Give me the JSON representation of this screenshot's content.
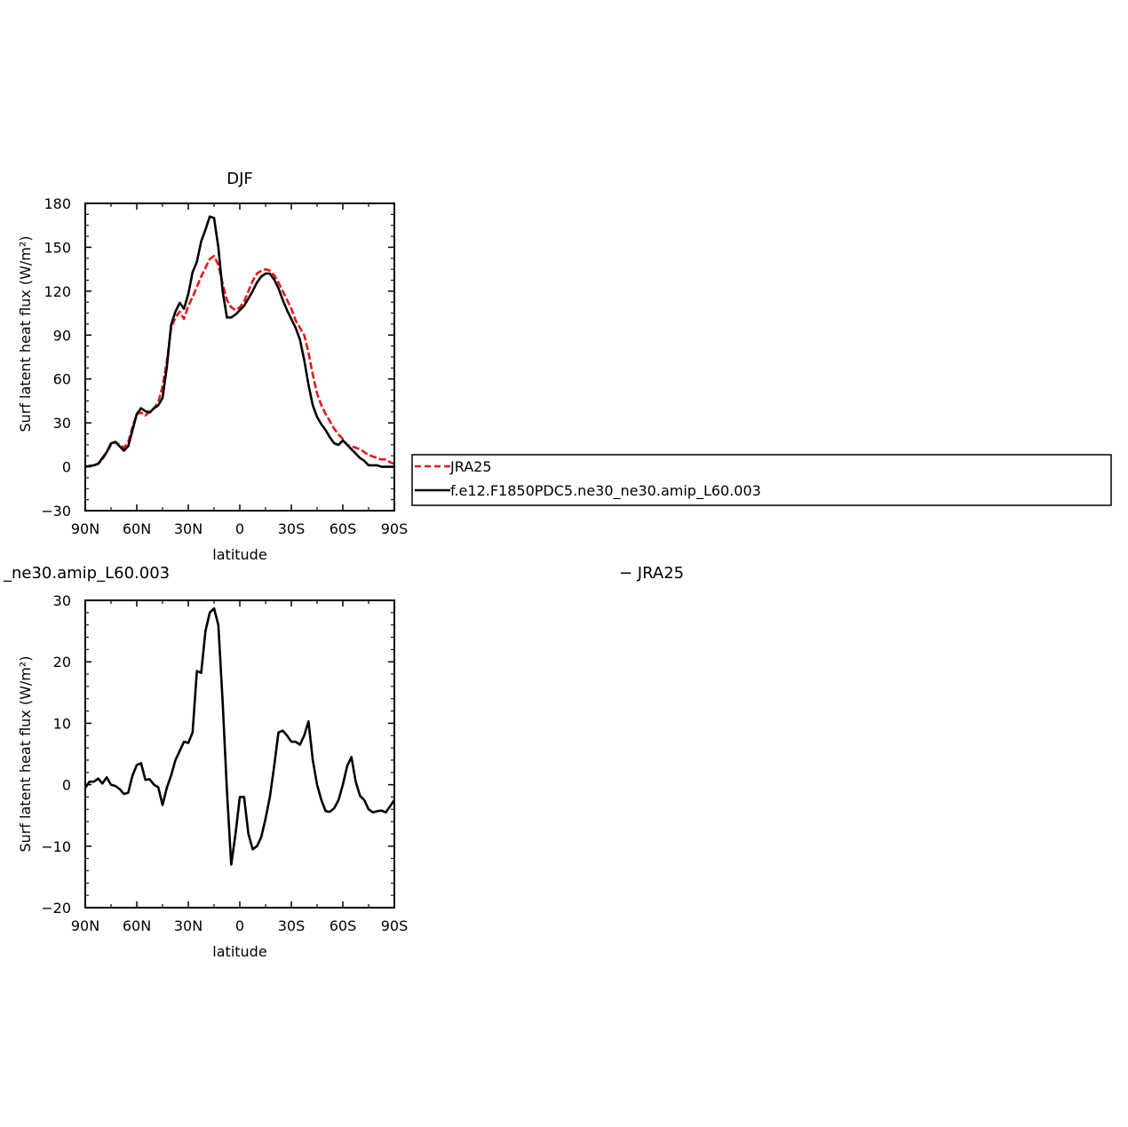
{
  "chart_data": [
    {
      "type": "line",
      "title": "DJF",
      "xlabel": "latitude",
      "ylabel": "Surf latent heat flux (W/m²)",
      "xlim": [
        -90,
        90
      ],
      "ylim": [
        -30,
        180
      ],
      "x_tick_values": [
        -90,
        -60,
        -30,
        0,
        30,
        60,
        90
      ],
      "x_tick_labels": [
        "90N",
        "60N",
        "30N",
        "0",
        "30S",
        "60S",
        "90S"
      ],
      "y_tick_values": [
        -30,
        0,
        30,
        60,
        90,
        120,
        150,
        180
      ],
      "y_tick_labels": [
        "−30",
        "0",
        "30",
        "60",
        "90",
        "120",
        "150",
        "180"
      ],
      "legend": {
        "position": "right",
        "entries": [
          "JRA25",
          "f.e12.F1850PDC5.ne30_ne30.amip_L60.003"
        ]
      },
      "series": [
        {
          "name": "JRA25",
          "color": "#e41a1c",
          "dash": "dashed",
          "x": [
            -90,
            -85,
            -82.5,
            -80,
            -77.5,
            -75,
            -72.5,
            -70,
            -67.5,
            -65,
            -62.5,
            -60,
            -57.5,
            -55,
            -52.5,
            -50,
            -47.5,
            -45,
            -42.5,
            -40,
            -37.5,
            -35,
            -32.5,
            -30,
            -27.5,
            -25,
            -22.5,
            -20,
            -17.5,
            -15,
            -12.5,
            -10,
            -7.5,
            -5,
            -2.5,
            0,
            2.5,
            5,
            7.5,
            10,
            12.5,
            15,
            17.5,
            20,
            22.5,
            25,
            27.5,
            30,
            32.5,
            35,
            37.5,
            40,
            42.5,
            45,
            47.5,
            50,
            52.5,
            55,
            57.5,
            60,
            62.5,
            65,
            67.5,
            70,
            72.5,
            75,
            77.5,
            80,
            82.5,
            85,
            87.5,
            90
          ],
          "y": [
            0,
            1,
            2,
            5,
            10,
            15,
            17,
            15,
            13,
            17,
            27,
            36,
            37,
            35,
            38,
            40,
            44,
            55,
            72,
            95,
            102,
            106,
            101,
            110,
            116,
            123,
            130,
            136,
            142,
            144,
            138,
            125,
            114,
            109,
            107,
            109,
            113,
            120,
            127,
            132,
            134,
            135,
            134,
            131,
            126,
            120,
            114,
            108,
            100,
            95,
            90,
            78,
            63,
            50,
            42,
            36,
            31,
            26,
            22,
            19,
            15,
            14,
            13,
            12,
            10,
            8,
            7,
            6,
            5,
            5,
            3,
            2
          ]
        },
        {
          "name": "f.e12.F1850PDC5.ne30_ne30.amip_L60.003",
          "color": "#000000",
          "dash": "solid",
          "x": [
            -90,
            -85,
            -82.5,
            -80,
            -77.5,
            -75,
            -72.5,
            -70,
            -67.5,
            -65,
            -62.5,
            -60,
            -57.5,
            -55,
            -52.5,
            -50,
            -47.5,
            -45,
            -42.5,
            -40,
            -37.5,
            -35,
            -32.5,
            -30,
            -27.5,
            -25,
            -22.5,
            -20,
            -17.5,
            -15,
            -12.5,
            -10,
            -7.5,
            -5,
            -2.5,
            0,
            2.5,
            5,
            7.5,
            10,
            12.5,
            15,
            17.5,
            20,
            22.5,
            25,
            27.5,
            30,
            32.5,
            35,
            37.5,
            40,
            42.5,
            45,
            47.5,
            50,
            52.5,
            55,
            57.5,
            60,
            62.5,
            65,
            67.5,
            70,
            72.5,
            75,
            77.5,
            80,
            82.5,
            85,
            87.5,
            90
          ],
          "y": [
            0,
            1,
            2,
            6,
            10,
            16,
            17,
            14,
            11,
            14,
            25,
            36,
            40,
            38,
            37,
            40,
            42,
            47,
            68,
            97,
            106,
            112,
            108,
            118,
            133,
            140,
            154,
            162,
            171,
            170,
            150,
            120,
            102,
            102,
            104,
            107,
            110,
            115,
            120,
            126,
            130,
            132,
            132,
            128,
            122,
            114,
            107,
            101,
            95,
            87,
            73,
            56,
            42,
            34,
            29,
            25,
            20,
            16,
            15,
            18,
            15,
            12,
            9,
            6,
            4,
            1,
            1,
            1,
            0,
            0,
            0,
            0
          ]
        }
      ]
    },
    {
      "type": "line",
      "title": "_ne30.amip_L60.003",
      "title_right": "− JRA25",
      "xlabel": "latitude",
      "ylabel": "Surf latent heat flux (W/m²)",
      "xlim": [
        -90,
        90
      ],
      "ylim": [
        -20,
        30
      ],
      "x_tick_values": [
        -90,
        -60,
        -30,
        0,
        30,
        60,
        90
      ],
      "x_tick_labels": [
        "90N",
        "60N",
        "30N",
        "0",
        "30S",
        "60S",
        "90S"
      ],
      "y_tick_values": [
        -20,
        -10,
        0,
        10,
        20,
        30
      ],
      "y_tick_labels": [
        "−20",
        "−10",
        "0",
        "10",
        "20",
        "30"
      ],
      "series": [
        {
          "color": "#000000",
          "dash": "solid",
          "x": [
            -90,
            -87.5,
            -85,
            -82.5,
            -80,
            -77.5,
            -75,
            -72.5,
            -70,
            -67.5,
            -65,
            -62.5,
            -60,
            -57.5,
            -55,
            -52.5,
            -50,
            -47.5,
            -45,
            -42.5,
            -40,
            -37.5,
            -35,
            -32.5,
            -30,
            -27.5,
            -25,
            -22.5,
            -20,
            -17.5,
            -15,
            -12.5,
            -10,
            -7.5,
            -5,
            -2.5,
            0,
            2.5,
            5,
            7.5,
            10,
            12.5,
            15,
            17.5,
            20,
            22.5,
            25,
            27.5,
            30,
            32.5,
            35,
            37.5,
            40,
            42.5,
            45,
            47.5,
            50,
            52.5,
            55,
            57.5,
            60,
            62.5,
            65,
            67.5,
            70,
            72.5,
            75,
            77.5,
            80,
            82.5,
            85,
            87.5,
            90
          ],
          "y": [
            -0.5,
            0.5,
            0.5,
            1.0,
            0.2,
            1.2,
            0,
            -0.2,
            -0.7,
            -1.5,
            -1.3,
            1.5,
            3.2,
            3.5,
            0.8,
            0.9,
            0,
            -0.4,
            -3.3,
            -0.5,
            1.5,
            4.0,
            5.5,
            7.0,
            6.8,
            8.5,
            18.5,
            18.2,
            25.0,
            28.0,
            28.7,
            26.0,
            13.5,
            -1.0,
            -13.0,
            -8.0,
            -2.0,
            -2.0,
            -8.0,
            -10.5,
            -10.0,
            -8.5,
            -5.5,
            -2.0,
            3.0,
            8.5,
            8.8,
            8.0,
            7.0,
            7.0,
            6.5,
            8.0,
            10.3,
            4.0,
            0,
            -2.5,
            -4.3,
            -4.4,
            -3.8,
            -2.5,
            0,
            3.0,
            4.5,
            0.5,
            -1.8,
            -2.5,
            -4.0,
            -4.5,
            -4.3,
            -4.2,
            -4.5,
            -3.5,
            -2.5
          ]
        }
      ]
    }
  ]
}
